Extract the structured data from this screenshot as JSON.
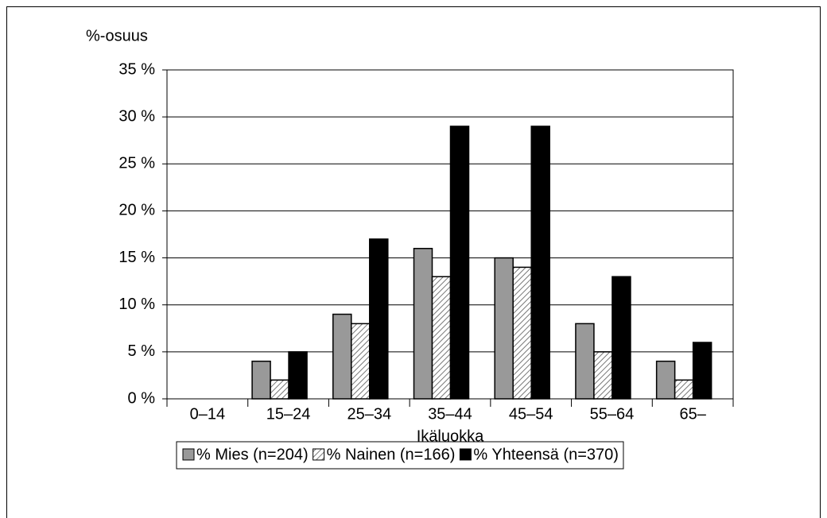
{
  "chart_data": {
    "type": "bar",
    "y_label": "%-osuus",
    "x_label": "Ikäluokka",
    "categories": [
      "0–14",
      "15–24",
      "25–34",
      "35–44",
      "45–54",
      "55–64",
      "65–"
    ],
    "series": [
      {
        "name": "% Mies (n=204)",
        "color": "#999999",
        "values": [
          0,
          4,
          9,
          16,
          15,
          8,
          4
        ]
      },
      {
        "name": "% Nainen (n=166)",
        "color": "#ffffff",
        "pattern": "hatch",
        "values": [
          0,
          2,
          8,
          13,
          14,
          5,
          2
        ]
      },
      {
        "name": "% Yhteensä (n=370)",
        "color": "#000000",
        "values": [
          0,
          5,
          17,
          29,
          29,
          13,
          6
        ]
      }
    ],
    "ylim": [
      0,
      35
    ],
    "yticks": [
      {
        "value": 0,
        "label": "0 %"
      },
      {
        "value": 5,
        "label": "5 %"
      },
      {
        "value": 10,
        "label": "10 %"
      },
      {
        "value": 15,
        "label": "15 %"
      },
      {
        "value": 20,
        "label": "20 %"
      },
      {
        "value": 25,
        "label": "25 %"
      },
      {
        "value": 30,
        "label": "30 %"
      },
      {
        "value": 35,
        "label": "35 %"
      }
    ],
    "grid": true,
    "legend": "bottom"
  }
}
